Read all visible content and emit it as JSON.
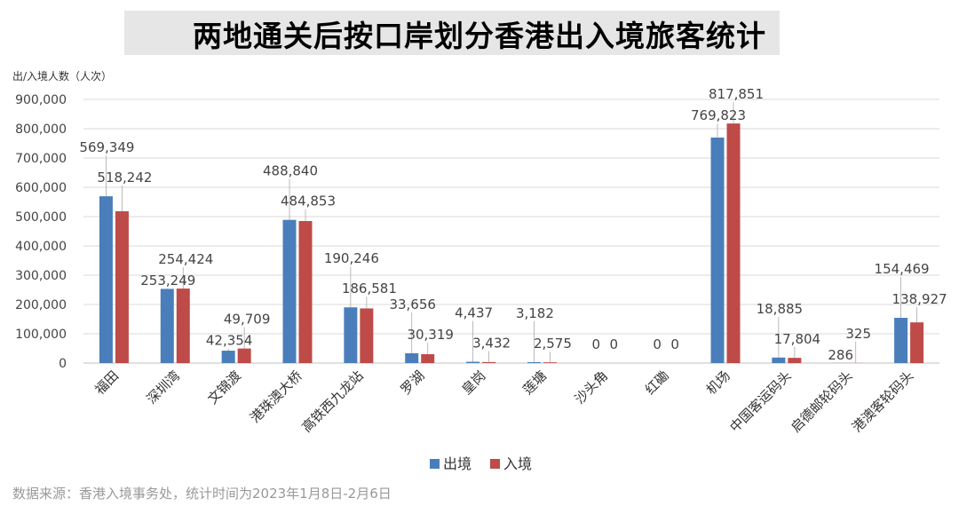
{
  "chart_data": {
    "type": "bar",
    "title": "两地通关后按口岸划分香港出入境旅客统计",
    "ylabel": "出/入境人数（人次）",
    "ylim": [
      0,
      900000
    ],
    "yticks": [
      0,
      100000,
      200000,
      300000,
      400000,
      500000,
      600000,
      700000,
      800000,
      900000
    ],
    "categories": [
      "福田",
      "深圳湾",
      "文锦渡",
      "港珠澳大桥",
      "高铁西九龙站",
      "罗湖",
      "皇岗",
      "莲塘",
      "沙头角",
      "红磡",
      "机场",
      "中国客运码头",
      "启德邮轮码头",
      "港澳客轮码头"
    ],
    "series": [
      {
        "name": "出境",
        "color": "#4a7ebb",
        "values": [
          569349,
          253249,
          42354,
          488840,
          190246,
          33656,
          4437,
          3182,
          0,
          0,
          769823,
          18885,
          286,
          154469
        ]
      },
      {
        "name": "入境",
        "color": "#be4b48",
        "values": [
          518242,
          254424,
          49709,
          484853,
          186581,
          30319,
          3432,
          2575,
          0,
          0,
          817851,
          17804,
          325,
          138927
        ]
      }
    ],
    "legend": "bottom-center",
    "grid": true
  },
  "source_note": "数据来源：香港入境事务处，统计时间为2023年1月8日-2月6日"
}
